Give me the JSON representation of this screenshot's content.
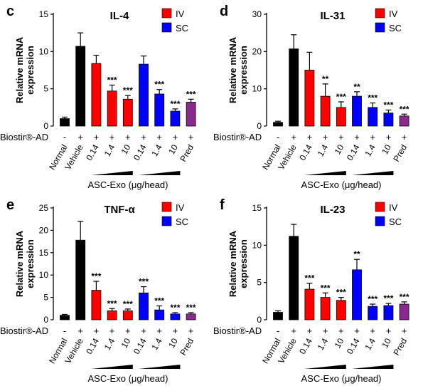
{
  "chart_data": [
    {
      "panel_letter": "c",
      "type": "bar",
      "title": "IL-4",
      "ylabel": "Relative mRNA\nexpression",
      "ylim": [
        0,
        15
      ],
      "yticks": [
        0,
        5,
        10,
        15
      ],
      "categories": [
        "Normal",
        "Vehicle",
        "0.14",
        "1.4",
        "10",
        "0.14",
        "1.4",
        "10",
        "Pred"
      ],
      "groups": [
        "Normal",
        "Vehicle",
        "IV",
        "IV",
        "IV",
        "SC",
        "SC",
        "SC",
        "Pred"
      ],
      "values": [
        1.0,
        10.7,
        8.4,
        4.7,
        3.6,
        8.3,
        4.3,
        2.0,
        3.2
      ],
      "errors": [
        0.2,
        1.8,
        1.1,
        0.8,
        0.5,
        1.1,
        0.6,
        0.3,
        0.4
      ],
      "significance": [
        "",
        "",
        "",
        "***",
        "***",
        "",
        "***",
        "***",
        "***"
      ],
      "biostir": [
        "-",
        "+",
        "+",
        "+",
        "+",
        "+",
        "+",
        "+",
        "+"
      ]
    },
    {
      "panel_letter": "d",
      "type": "bar",
      "title": "IL-31",
      "ylabel": "Relative mRNA\nexpression",
      "ylim": [
        0,
        30
      ],
      "yticks": [
        0,
        10,
        20,
        30
      ],
      "categories": [
        "Normal",
        "Vehicle",
        "0.14",
        "1.4",
        "10",
        "0.14",
        "1.4",
        "10",
        "Pred"
      ],
      "groups": [
        "Normal",
        "Vehicle",
        "IV",
        "IV",
        "IV",
        "SC",
        "SC",
        "SC",
        "Pred"
      ],
      "values": [
        1.0,
        20.7,
        15.0,
        8.0,
        5.0,
        8.0,
        5.0,
        3.5,
        2.7
      ],
      "errors": [
        0.3,
        3.8,
        4.8,
        3.3,
        1.5,
        1.2,
        1.2,
        0.8,
        0.5
      ],
      "significance": [
        "",
        "",
        "",
        "**",
        "***",
        "**",
        "***",
        "***",
        "***"
      ],
      "biostir": [
        "-",
        "+",
        "+",
        "+",
        "+",
        "+",
        "+",
        "+",
        "+"
      ]
    },
    {
      "panel_letter": "e",
      "type": "bar",
      "title": "TNF-α",
      "ylabel": "Relative mRNA\nexpression",
      "ylim": [
        0,
        25
      ],
      "yticks": [
        0,
        5,
        10,
        15,
        20,
        25
      ],
      "categories": [
        "Normal",
        "Vehicle",
        "0.14",
        "1.4",
        "10",
        "0.14",
        "1.4",
        "10",
        "Pred"
      ],
      "groups": [
        "Normal",
        "Vehicle",
        "IV",
        "IV",
        "IV",
        "SC",
        "SC",
        "SC",
        "Pred"
      ],
      "values": [
        1.0,
        17.8,
        6.6,
        2.0,
        2.0,
        6.0,
        2.2,
        1.3,
        1.3
      ],
      "errors": [
        0.2,
        4.2,
        2.0,
        0.5,
        0.4,
        1.4,
        0.9,
        0.3,
        0.3
      ],
      "significance": [
        "",
        "",
        "***",
        "***",
        "***",
        "***",
        "***",
        "***",
        "***"
      ],
      "biostir": [
        "-",
        "+",
        "+",
        "+",
        "+",
        "+",
        "+",
        "+",
        "+"
      ]
    },
    {
      "panel_letter": "f",
      "type": "bar",
      "title": "IL-23",
      "ylabel": "Relative mRNA\nexpression",
      "ylim": [
        0,
        15
      ],
      "yticks": [
        0,
        5,
        10,
        15
      ],
      "categories": [
        "Normal",
        "Vehicle",
        "0.14",
        "1.4",
        "10",
        "0.14",
        "1.4",
        "10",
        "Pred"
      ],
      "groups": [
        "Normal",
        "Vehicle",
        "IV",
        "IV",
        "IV",
        "SC",
        "SC",
        "SC",
        "Pred"
      ],
      "values": [
        1.0,
        11.2,
        4.1,
        3.0,
        2.6,
        6.7,
        1.8,
        1.9,
        2.1
      ],
      "errors": [
        0.2,
        1.6,
        0.8,
        0.6,
        0.4,
        1.4,
        0.3,
        0.3,
        0.3
      ],
      "significance": [
        "",
        "",
        "***",
        "***",
        "***",
        "**",
        "***",
        "***",
        "***"
      ],
      "biostir": [
        "-",
        "+",
        "+",
        "+",
        "+",
        "+",
        "+",
        "+",
        "+"
      ]
    }
  ],
  "legend": {
    "iv_label": "IV",
    "sc_label": "SC"
  },
  "row_label": "Biostir®-AD",
  "xlabel": "ASC-Exo (μg/head)",
  "colors": {
    "Normal": "#000000",
    "Vehicle": "#000000",
    "IV": "#ff0000",
    "SC": "#0000ff",
    "Pred": "#8b2a8e"
  }
}
